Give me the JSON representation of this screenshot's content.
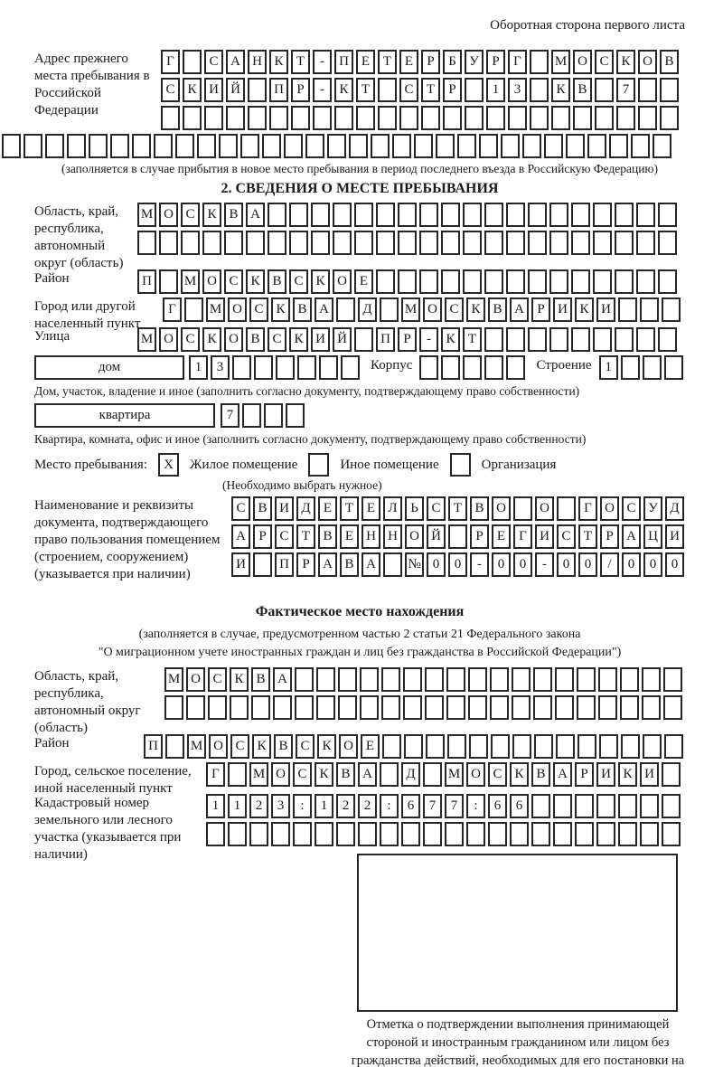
{
  "page_header": "Оборотная сторона первого листа",
  "prev_address": {
    "label": "Адрес прежнего места пребывания в Российской Федерации",
    "rows": [
      [
        "Г",
        "",
        "С",
        "А",
        "Н",
        "К",
        "Т",
        "-",
        "П",
        "Е",
        "Т",
        "Е",
        "Р",
        "Б",
        "У",
        "Р",
        "Г",
        "",
        "М",
        "О",
        "С",
        "К",
        "О",
        "В"
      ],
      [
        "С",
        "К",
        "И",
        "Й",
        "",
        "П",
        "Р",
        "-",
        "К",
        "Т",
        "",
        "С",
        "Т",
        "Р",
        "",
        "1",
        "3",
        "",
        "К",
        "В",
        "",
        "7",
        "",
        ""
      ],
      [
        "",
        "",
        "",
        "",
        "",
        "",
        "",
        "",
        "",
        "",
        "",
        "",
        "",
        "",
        "",
        "",
        "",
        "",
        "",
        "",
        "",
        "",
        "",
        ""
      ]
    ],
    "row_full": [
      "",
      "",
      "",
      "",
      "",
      "",
      "",
      "",
      "",
      "",
      "",
      "",
      "",
      "",
      "",
      "",
      "",
      "",
      "",
      "",
      "",
      "",
      "",
      "",
      "",
      "",
      "",
      "",
      "",
      "",
      ""
    ],
    "note": "(заполняется в случае прибытия в новое место пребывания в период последнего въезда в Российскую Федерацию)"
  },
  "section2": {
    "title": "2. СВЕДЕНИЯ О МЕСТЕ ПРЕБЫВАНИЯ",
    "region": {
      "label": "Область, край, республика, автономный округ (область)",
      "rows": [
        [
          "М",
          "О",
          "С",
          "К",
          "В",
          "А",
          "",
          "",
          "",
          "",
          "",
          "",
          "",
          "",
          "",
          "",
          "",
          "",
          "",
          "",
          "",
          "",
          "",
          "",
          ""
        ],
        [
          "",
          "",
          "",
          "",
          "",
          "",
          "",
          "",
          "",
          "",
          "",
          "",
          "",
          "",
          "",
          "",
          "",
          "",
          "",
          "",
          "",
          "",
          "",
          "",
          ""
        ]
      ]
    },
    "district": {
      "label": "Район",
      "cells": [
        "П",
        "",
        "М",
        "О",
        "С",
        "К",
        "В",
        "С",
        "К",
        "О",
        "Е",
        "",
        "",
        "",
        "",
        "",
        "",
        "",
        "",
        "",
        "",
        "",
        "",
        "",
        ""
      ]
    },
    "city": {
      "label": "Город или другой населенный пункт",
      "cells": [
        "Г",
        "",
        "М",
        "О",
        "С",
        "К",
        "В",
        "А",
        "",
        "Д",
        "",
        "М",
        "О",
        "С",
        "К",
        "В",
        "А",
        "Р",
        "И",
        "К",
        "И",
        "",
        "",
        ""
      ]
    },
    "street": {
      "label": "Улица",
      "cells": [
        "М",
        "О",
        "С",
        "К",
        "О",
        "В",
        "С",
        "К",
        "И",
        "Й",
        "",
        "П",
        "Р",
        "-",
        "К",
        "Т",
        "",
        "",
        "",
        "",
        "",
        "",
        "",
        "",
        ""
      ]
    },
    "house": {
      "box_label": "дом",
      "cells": [
        "1",
        "3",
        "",
        "",
        "",
        "",
        "",
        ""
      ],
      "korpus_label": "Корпус",
      "korpus_cells": [
        "",
        "",
        "",
        "",
        ""
      ],
      "stroenie_label": "Строение",
      "stroenie_cells": [
        "1",
        "",
        "",
        ""
      ],
      "note": "Дом, участок, владение и иное (заполнить согласно документу, подтверждающему право собственности)"
    },
    "apartment": {
      "box_label": "квартира",
      "cells": [
        "7",
        "",
        "",
        ""
      ],
      "note": "Квартира, комната, офис и иное (заполнить согласно документу, подтверждающему право собственности)"
    },
    "stay_type": {
      "label": "Место пребывания:",
      "options": [
        {
          "mark": "X",
          "label": "Жилое помещение"
        },
        {
          "mark": "",
          "label": "Иное помещение"
        },
        {
          "mark": "",
          "label": "Организация"
        }
      ],
      "note": "(Необходимо выбрать нужное)"
    },
    "document": {
      "label": "Наименование и реквизиты документа, подтверждающего право пользования помещением (строением, сооружением) (указывается при наличии)",
      "rows": [
        [
          "С",
          "В",
          "И",
          "Д",
          "Е",
          "Т",
          "Е",
          "Л",
          "Ь",
          "С",
          "Т",
          "В",
          "О",
          "",
          "О",
          "",
          "Г",
          "О",
          "С",
          "У",
          "Д"
        ],
        [
          "А",
          "Р",
          "С",
          "Т",
          "В",
          "Е",
          "Н",
          "Н",
          "О",
          "Й",
          "",
          "Р",
          "Е",
          "Г",
          "И",
          "С",
          "Т",
          "Р",
          "А",
          "Ц",
          "И"
        ],
        [
          "И",
          "",
          "П",
          "Р",
          "А",
          "В",
          "А",
          "",
          "№",
          "0",
          "0",
          "-",
          "0",
          "0",
          "-",
          "0",
          "0",
          "/",
          "0",
          "0",
          "0"
        ]
      ]
    }
  },
  "actual_location": {
    "title": "Фактическое место нахождения",
    "note_line1": "(заполняется в случае, предусмотренном частью 2 статьи 21 Федерального закона",
    "note_line2": "\"О миграционном учете иностранных граждан и лиц без гражданства в Российской Федерации\")",
    "region": {
      "label": "Область, край, республика, автономный округ (область)",
      "rows": [
        [
          "М",
          "О",
          "С",
          "К",
          "В",
          "А",
          "",
          "",
          "",
          "",
          "",
          "",
          "",
          "",
          "",
          "",
          "",
          "",
          "",
          "",
          "",
          "",
          "",
          ""
        ],
        [
          "",
          "",
          "",
          "",
          "",
          "",
          "",
          "",
          "",
          "",
          "",
          "",
          "",
          "",
          "",
          "",
          "",
          "",
          "",
          "",
          "",
          "",
          "",
          ""
        ]
      ]
    },
    "district": {
      "label": "Район",
      "cells": [
        "П",
        "",
        "М",
        "О",
        "С",
        "К",
        "В",
        "С",
        "К",
        "О",
        "Е",
        "",
        "",
        "",
        "",
        "",
        "",
        "",
        "",
        "",
        "",
        "",
        "",
        "",
        ""
      ]
    },
    "city": {
      "label": "Город, сельское поселение, иной населенный пункт",
      "cells": [
        "Г",
        "",
        "М",
        "О",
        "С",
        "К",
        "В",
        "А",
        "",
        "Д",
        "",
        "М",
        "О",
        "С",
        "К",
        "В",
        "А",
        "Р",
        "И",
        "К",
        "И",
        ""
      ]
    },
    "cadastral": {
      "label": "Кадастровый номер земельного или лесного участка (указывается при наличии)",
      "rows": [
        [
          "1",
          "1",
          "2",
          "3",
          ":",
          "1",
          "2",
          "2",
          ":",
          "6",
          "7",
          "7",
          ":",
          "6",
          "6",
          "",
          "",
          "",
          "",
          "",
          "",
          ""
        ],
        [
          "",
          "",
          "",
          "",
          "",
          "",
          "",
          "",
          "",
          "",
          "",
          "",
          "",
          "",
          "",
          "",
          "",
          "",
          "",
          "",
          "",
          ""
        ]
      ]
    },
    "stamp_note": "Отметка о подтверждении выполнения принимающей стороной и иностранным гражданином или лицом без гражданства действий, необходимых для его постановки на учет по месту пребывания"
  }
}
